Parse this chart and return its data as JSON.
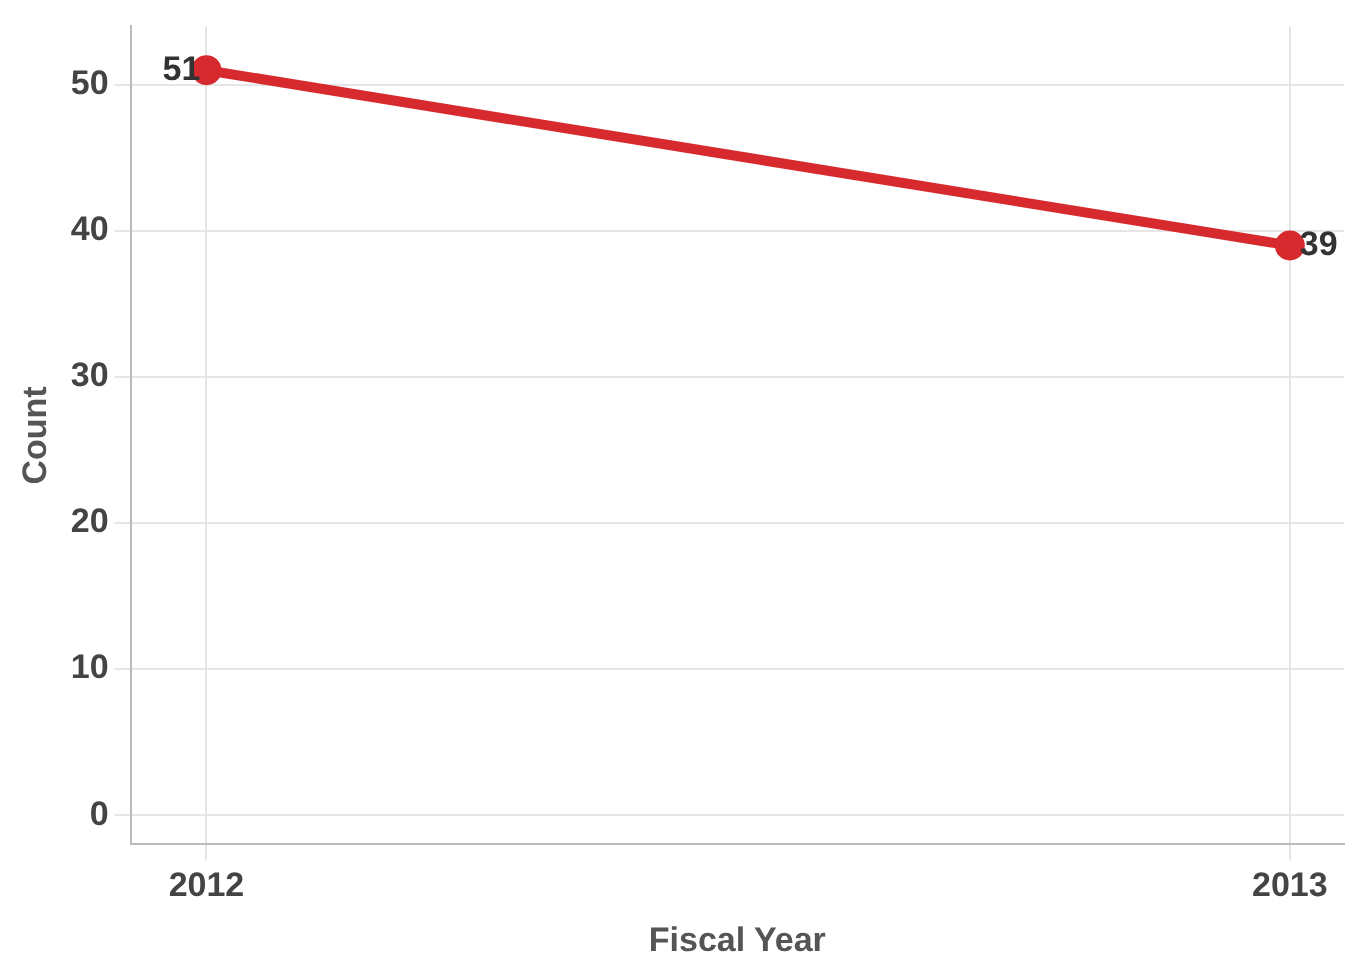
{
  "chart_data": {
    "type": "line",
    "xlabel": "Fiscal Year",
    "ylabel": "Count",
    "x": [
      2012,
      2013
    ],
    "series": [
      {
        "color": "#d62a2f",
        "values": [
          51,
          39
        ]
      }
    ],
    "xlim": [
      2011.93,
      2013.05
    ],
    "xticks": [
      2012,
      2013
    ],
    "ylim": [
      -2,
      54
    ],
    "yticks": [
      0,
      10,
      20,
      30,
      40,
      50
    ],
    "grid": true,
    "legend": false,
    "marker": "circle",
    "line_style": "solid",
    "data_labels": true
  }
}
